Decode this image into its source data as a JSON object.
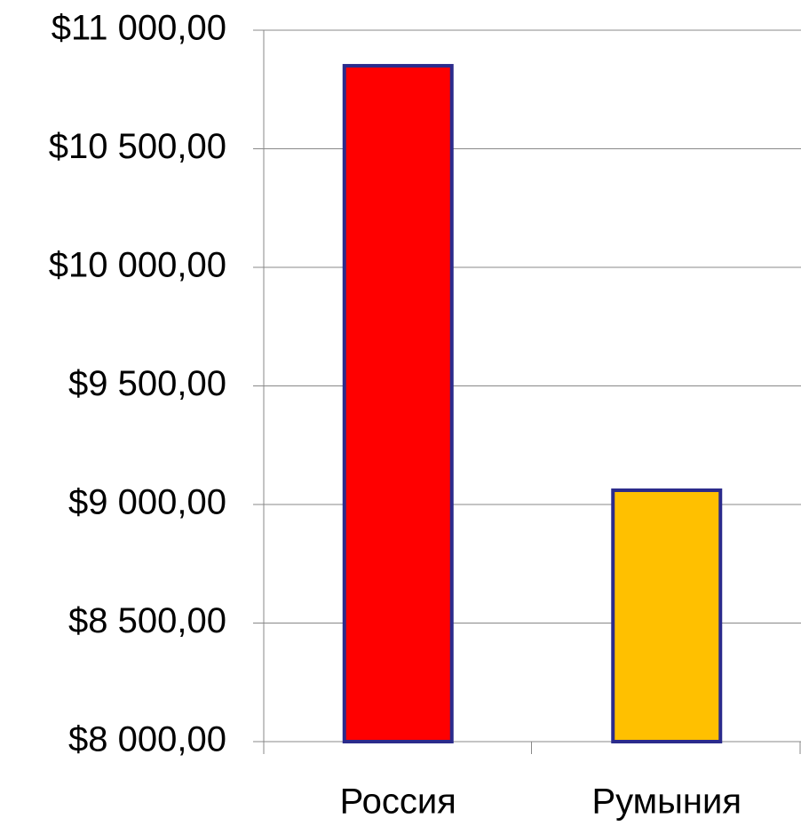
{
  "chart_data": {
    "type": "bar",
    "categories": [
      "Россия",
      "Румыния"
    ],
    "values": [
      10850,
      9060
    ],
    "colors": [
      "#ff0000",
      "#ffc000"
    ],
    "ylim": [
      8000,
      11000
    ],
    "yticks": [
      {
        "value": 8000,
        "label": "$8 000,00"
      },
      {
        "value": 8500,
        "label": "$8 500,00"
      },
      {
        "value": 9000,
        "label": "$9 000,00"
      },
      {
        "value": 9500,
        "label": "$9 500,00"
      },
      {
        "value": 10000,
        "label": "$10 000,00"
      },
      {
        "value": 10500,
        "label": "$10 500,00"
      },
      {
        "value": 11000,
        "label": "$11 000,00"
      }
    ],
    "grid": true
  }
}
